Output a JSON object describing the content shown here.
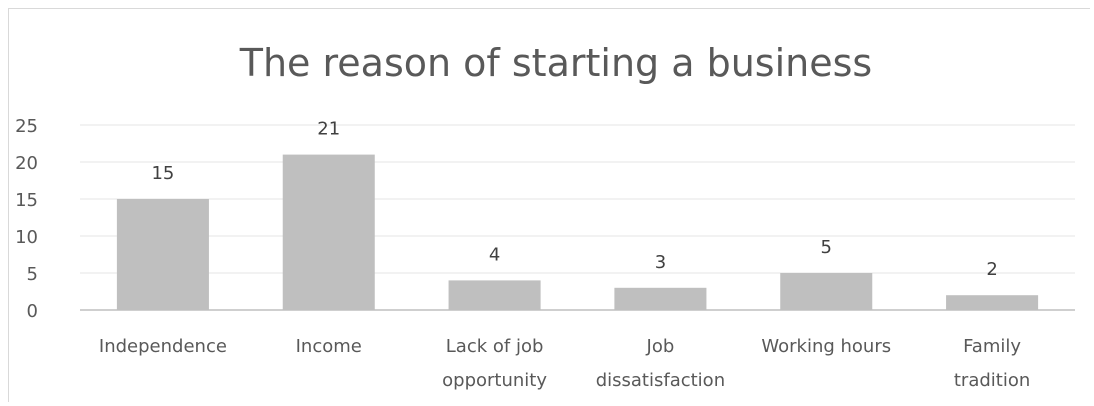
{
  "chart_data": {
    "type": "bar",
    "title": "The reason of starting a business",
    "categories": [
      [
        "Independence"
      ],
      [
        "Income"
      ],
      [
        "Lack of job",
        "opportunity"
      ],
      [
        "Job",
        "dissatisfaction"
      ],
      [
        "Working hours"
      ],
      [
        "Family",
        "tradition"
      ]
    ],
    "values": [
      15,
      21,
      4,
      3,
      5,
      2
    ],
    "ylim": [
      0,
      25
    ],
    "yticks": [
      0,
      5,
      10,
      15,
      20,
      25
    ],
    "grid": true,
    "legend": "none",
    "colors": {
      "bar": "#bfbfbf",
      "grid": "#e6e6e6",
      "axis": "#bfbfbf"
    }
  }
}
